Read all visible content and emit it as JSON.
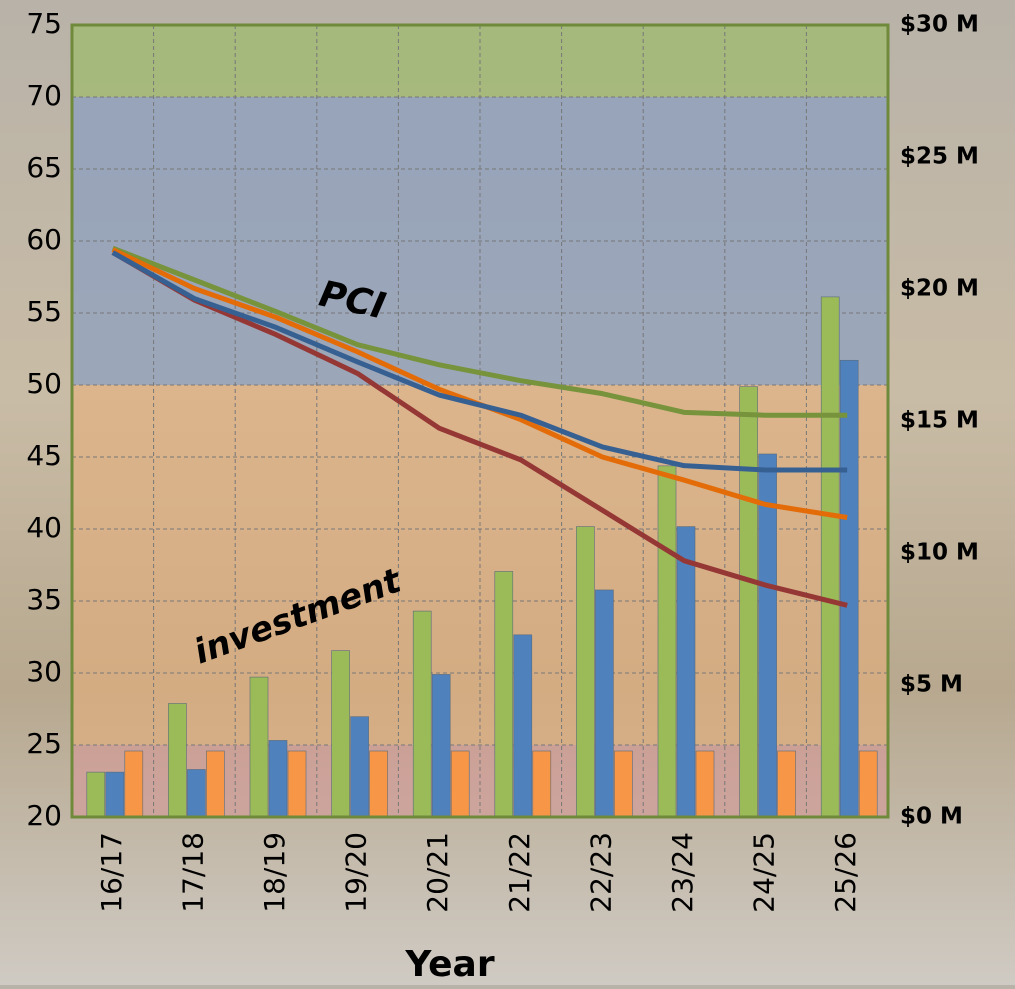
{
  "chart_data": {
    "type": "bar_line",
    "x_label": "Year",
    "annotations": [
      "PCI",
      "investment"
    ],
    "categories": [
      "16/17",
      "17/18",
      "18/19",
      "19/20",
      "20/21",
      "21/22",
      "22/23",
      "23/24",
      "24/25",
      "25/26"
    ],
    "ylim": [
      20,
      75
    ],
    "yticks": [
      20,
      25,
      30,
      35,
      40,
      45,
      50,
      55,
      60,
      65,
      70,
      75
    ],
    "y2lim": [
      0,
      30
    ],
    "y2ticks": [
      {
        "value": 0,
        "label": "$0 M"
      },
      {
        "value": 5,
        "label": "$5 M"
      },
      {
        "value": 10,
        "label": "$10 M"
      },
      {
        "value": 15,
        "label": "$15 M"
      },
      {
        "value": 20,
        "label": "$20 M"
      },
      {
        "value": 25,
        "label": "$25 M"
      },
      {
        "value": 30,
        "label": "$30 M"
      }
    ],
    "grid": true,
    "bands": [
      {
        "from": 70,
        "to": 75,
        "color": "rgba(150,190,90,0.55)"
      },
      {
        "from": 50,
        "to": 70,
        "color": "rgba(120,150,200,0.55)"
      },
      {
        "from": 25,
        "to": 50,
        "color": "rgba(235,175,120,0.55)"
      },
      {
        "from": 20,
        "to": 25,
        "color": "rgba(215,150,150,0.55)"
      }
    ],
    "bar_series": [
      {
        "color": "#9bbb59",
        "axis": "y2",
        "values": [
          1.7,
          4.3,
          5.3,
          6.3,
          7.8,
          9.3,
          11.0,
          13.3,
          16.3,
          19.7
        ]
      },
      {
        "color": "#4f81bd",
        "axis": "y2",
        "values": [
          1.7,
          1.8,
          2.9,
          3.8,
          5.4,
          6.9,
          8.6,
          11.0,
          13.75,
          17.3
        ]
      },
      {
        "color": "#f79646",
        "axis": "y2",
        "values": [
          2.5,
          2.5,
          2.5,
          2.5,
          2.5,
          2.5,
          2.5,
          2.5,
          2.5,
          2.5
        ]
      }
    ],
    "line_series": [
      {
        "color": "#77933c",
        "values": [
          59.5,
          57.3,
          55.1,
          52.8,
          51.4,
          50.3,
          49.4,
          48.1,
          47.9,
          47.9
        ]
      },
      {
        "color": "#e36c09",
        "values": [
          59.4,
          56.7,
          54.7,
          52.3,
          49.7,
          47.6,
          45.0,
          43.4,
          41.7,
          40.8
        ]
      },
      {
        "color": "#953735",
        "values": [
          59.2,
          55.9,
          53.5,
          50.8,
          47.0,
          44.8,
          41.3,
          37.8,
          36.1,
          34.7
        ]
      },
      {
        "color": "#376092",
        "values": [
          59.2,
          56.0,
          54.0,
          51.6,
          49.3,
          47.9,
          45.7,
          44.4,
          44.1,
          44.1
        ]
      }
    ]
  }
}
